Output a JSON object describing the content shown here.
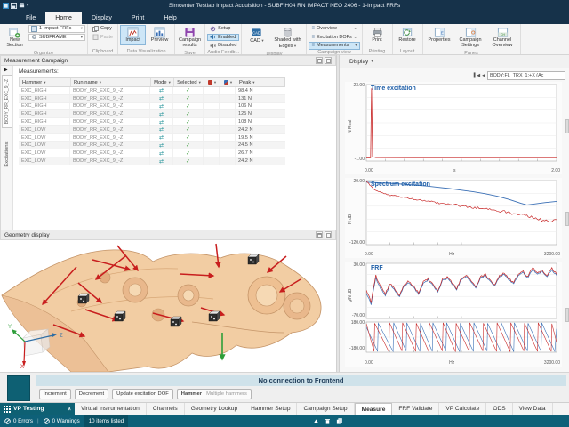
{
  "window": {
    "title": "Simcenter Testlab Impact Acquisition - SUBF H04 RN IMPACT NEO 2406 - 1-Impact FRFs"
  },
  "menu": {
    "tabs": [
      "File",
      "Home",
      "Display",
      "Print",
      "Help"
    ],
    "active_tab": "Home"
  },
  "ribbon": {
    "organize": {
      "label": "Organize",
      "new_section": "New Section",
      "combo1": "1-Impact FRFs",
      "combo2": "SUBFRAME"
    },
    "clipboard": {
      "label": "Clipboard",
      "copy": "Copy",
      "paste": "Paste"
    },
    "dataviz": {
      "label": "Data Visualization",
      "impact": "Impact",
      "preview": "Preview"
    },
    "save": {
      "label": "Save",
      "campaign_results": "Campaign results"
    },
    "audio": {
      "label": "Audio Feedb...",
      "setup": "Setup",
      "enabled": "Enabled",
      "disabled": "Disabled"
    },
    "display": {
      "label": "Display",
      "cad": "CAD",
      "shaded": "Shaded with Edges"
    },
    "campaign_view": {
      "label": "Campaign view",
      "overview": "Overview",
      "excitation_dofs": "Excitation DOFs",
      "measurements": "Measurements"
    },
    "printing": {
      "label": "Printing",
      "print": "Print"
    },
    "layout": {
      "label": "Layout",
      "restore": "Restore"
    },
    "panes": {
      "label": "Panes",
      "properties": "Properties",
      "campaign_settings": "Campaign Settings",
      "channel_overview": "Channel Overview"
    }
  },
  "left": {
    "panel_title": "Measurement Campaign",
    "excitation_tab": "BODY_RR_EXC_9_-Z",
    "excitations_label": "Excitations:",
    "measurements_label": "Measurements:",
    "table": {
      "columns": [
        "Hammer",
        "Run name",
        "Mode",
        "Selected",
        "Peak"
      ],
      "rows": [
        {
          "hammer": "EXC_HIGH",
          "run": "BODY_RR_EXC_9_-Z",
          "peak": "98.4 N"
        },
        {
          "hammer": "EXC_HIGH",
          "run": "BODY_RR_EXC_9_-Z",
          "peak": "131 N"
        },
        {
          "hammer": "EXC_HIGH",
          "run": "BODY_RR_EXC_9_-Z",
          "peak": "106 N"
        },
        {
          "hammer": "EXC_HIGH",
          "run": "BODY_RR_EXC_9_-Z",
          "peak": "125 N"
        },
        {
          "hammer": "EXC_HIGH",
          "run": "BODY_RR_EXC_9_-Z",
          "peak": "108 N"
        },
        {
          "hammer": "EXC_LOW",
          "run": "BODY_RR_EXC_9_-Z",
          "peak": "24.2 N"
        },
        {
          "hammer": "EXC_LOW",
          "run": "BODY_RR_EXC_9_-Z",
          "peak": "19.5 N"
        },
        {
          "hammer": "EXC_LOW",
          "run": "BODY_RR_EXC_9_-Z",
          "peak": "24.5 N"
        },
        {
          "hammer": "EXC_LOW",
          "run": "BODY_RR_EXC_9_-Z",
          "peak": "26.7 N"
        },
        {
          "hammer": "EXC_LOW",
          "run": "BODY_RR_EXC_9_-Z",
          "peak": "24.2 N"
        }
      ]
    },
    "geometry_title": "Geometry display",
    "triad": {
      "x": "X",
      "y": "Y",
      "z": "Z"
    }
  },
  "right": {
    "display_button": "Display",
    "nav_value": "BODY:FL_TRX_1:+X (Ac"
  },
  "chart_data": {
    "time": {
      "type": "line",
      "title": "Time excitation",
      "yunit1": "N",
      "yunit2": "Real",
      "ymax": "23.00",
      "ymin": "-1.00",
      "xmin": "0.00",
      "xmax": "2.00",
      "xunit": "s",
      "xlim": [
        0,
        2
      ],
      "ylim": [
        -1,
        23
      ],
      "series": [
        {
          "name": "hammer-time-trace",
          "color": "#c82828",
          "width": 0.8,
          "jitter": 0,
          "points": [
            [
              0,
              0
            ],
            [
              0.045,
              0
            ],
            [
              0.055,
              21.8
            ],
            [
              0.065,
              0.4
            ],
            [
              0.1,
              0.1
            ],
            [
              0.5,
              0.05
            ],
            [
              1,
              0.05
            ],
            [
              1.5,
              0.05
            ],
            [
              2,
              0.05
            ]
          ]
        }
      ]
    },
    "spectrum": {
      "type": "line",
      "title": "Spectrum excitation",
      "yunit1": "N",
      "yunit2": "dB",
      "ymax": "-20.00",
      "ymin": "-120.00",
      "xmin": "0.00",
      "xmax": "3200.00",
      "xunit": "Hz",
      "xlim": [
        0,
        3200
      ],
      "ylim": [
        -120,
        -20
      ],
      "series": [
        {
          "name": "spectrum-smoothed",
          "color": "#3a6fb5",
          "width": 0.9,
          "jitter": 0,
          "points": [
            [
              0,
              -22.5
            ],
            [
              200,
              -23.5
            ],
            [
              400,
              -24.5
            ],
            [
              600,
              -25.5
            ],
            [
              800,
              -27
            ],
            [
              1000,
              -28.5
            ],
            [
              1200,
              -30.5
            ],
            [
              1400,
              -32.5
            ],
            [
              1600,
              -35
            ],
            [
              1800,
              -37.5
            ],
            [
              2000,
              -40.5
            ],
            [
              2200,
              -44.5
            ],
            [
              2400,
              -49.5
            ],
            [
              2600,
              -55.5
            ],
            [
              2700,
              -58
            ],
            [
              2800,
              -57
            ],
            [
              3000,
              -54.5
            ],
            [
              3200,
              -52.5
            ]
          ]
        },
        {
          "name": "spectrum-raw",
          "color": "#c82828",
          "width": 0.7,
          "jitter": 5,
          "jitter_grow": true,
          "points": [
            [
              0,
              -21
            ],
            [
              60,
              -27
            ],
            [
              120,
              -33
            ],
            [
              200,
              -37
            ],
            [
              300,
              -40
            ],
            [
              400,
              -43
            ],
            [
              500,
              -44
            ],
            [
              600,
              -46
            ],
            [
              700,
              -47
            ],
            [
              800,
              -49
            ],
            [
              900,
              -50
            ],
            [
              1000,
              -52
            ],
            [
              1100,
              -53
            ],
            [
              1200,
              -55
            ],
            [
              1300,
              -56
            ],
            [
              1400,
              -57
            ],
            [
              1500,
              -58
            ],
            [
              1600,
              -60
            ],
            [
              1700,
              -61
            ],
            [
              1800,
              -62
            ],
            [
              1900,
              -63
            ],
            [
              2000,
              -64
            ],
            [
              2100,
              -66
            ],
            [
              2200,
              -67
            ],
            [
              2300,
              -68
            ],
            [
              2400,
              -70
            ],
            [
              2500,
              -72
            ],
            [
              2600,
              -71
            ],
            [
              2700,
              -74
            ],
            [
              2800,
              -78
            ],
            [
              2900,
              -80
            ],
            [
              3000,
              -83
            ],
            [
              3100,
              -85
            ],
            [
              3200,
              -81
            ]
          ]
        }
      ]
    },
    "frf": {
      "type": "line",
      "title": "FRF",
      "yunit1": "g/N",
      "yunit2": "dB",
      "ymax": "30.00",
      "ymin": "-70.00",
      "pmax": "180.00",
      "pmin": "-180.00",
      "xmin": "0.00",
      "xmax": "3200.00",
      "xunit": "Hz",
      "xlim": [
        0,
        3200
      ],
      "ylim": [
        -70,
        30
      ],
      "plim": [
        -180,
        180
      ],
      "amp": [
        {
          "name": "frf-amplitude-blue",
          "color": "#3a6fb5",
          "width": 0.7,
          "jitter": 3,
          "x_step": 80,
          "values": [
            -25,
            -44,
            4,
            -16,
            -28,
            -9,
            -20,
            -30,
            -10,
            -5,
            -14,
            -26,
            -7,
            0,
            -10,
            -22,
            -2,
            3,
            -7,
            -17,
            1,
            6,
            -4,
            -14,
            3,
            8,
            -2,
            -10,
            6,
            10,
            0,
            -7,
            8,
            13,
            3,
            20,
            10,
            16,
            6,
            18,
            8
          ]
        },
        {
          "name": "frf-amplitude-red",
          "color": "#c82828",
          "width": 0.7,
          "jitter": 4,
          "x_step": 80,
          "values": [
            -20,
            -40,
            8,
            -12,
            -25,
            -6,
            -18,
            -28,
            -8,
            -2,
            -12,
            -24,
            -4,
            2,
            -8,
            -20,
            0,
            5,
            -5,
            -15,
            3,
            8,
            -2,
            -12,
            5,
            10,
            0,
            -8,
            8,
            12,
            2,
            -5,
            10,
            15,
            5,
            24,
            12,
            18,
            8,
            22,
            10
          ]
        }
      ],
      "phase": [
        {
          "name": "frf-phase-blue",
          "color": "#3a6fb5",
          "width": 0.6,
          "jitter": 0,
          "points": [
            [
              0,
              120
            ],
            [
              190,
              -170
            ],
            [
              200,
              165
            ],
            [
              450,
              -170
            ],
            [
              460,
              170
            ],
            [
              670,
              -165
            ],
            [
              680,
              170
            ],
            [
              900,
              -170
            ],
            [
              910,
              165
            ],
            [
              1110,
              -170
            ],
            [
              1120,
              170
            ],
            [
              1340,
              -165
            ],
            [
              1350,
              170
            ],
            [
              1570,
              -175
            ],
            [
              1580,
              165
            ],
            [
              1800,
              -170
            ],
            [
              1810,
              170
            ],
            [
              2030,
              -165
            ],
            [
              2040,
              165
            ],
            [
              2260,
              -170
            ],
            [
              2270,
              170
            ],
            [
              2480,
              -175
            ],
            [
              2490,
              170
            ],
            [
              2710,
              -165
            ],
            [
              2720,
              165
            ],
            [
              2940,
              -170
            ],
            [
              2950,
              170
            ],
            [
              3170,
              -170
            ],
            [
              3200,
              100
            ]
          ]
        },
        {
          "name": "frf-phase-red",
          "color": "#c82828",
          "width": 0.6,
          "jitter": 0,
          "points": [
            [
              0,
              160
            ],
            [
              130,
              -170
            ],
            [
              140,
              165
            ],
            [
              380,
              -175
            ],
            [
              390,
              170
            ],
            [
              600,
              -165
            ],
            [
              610,
              170
            ],
            [
              830,
              -170
            ],
            [
              840,
              165
            ],
            [
              1050,
              -170
            ],
            [
              1060,
              170
            ],
            [
              1280,
              -165
            ],
            [
              1290,
              170
            ],
            [
              1500,
              -175
            ],
            [
              1510,
              165
            ],
            [
              1730,
              -170
            ],
            [
              1740,
              170
            ],
            [
              1960,
              -165
            ],
            [
              1970,
              165
            ],
            [
              2190,
              -170
            ],
            [
              2200,
              170
            ],
            [
              2420,
              -175
            ],
            [
              2430,
              170
            ],
            [
              2650,
              -165
            ],
            [
              2660,
              165
            ],
            [
              2880,
              -170
            ],
            [
              2890,
              170
            ],
            [
              3110,
              -170
            ],
            [
              3120,
              160
            ],
            [
              3200,
              -60
            ]
          ]
        }
      ]
    }
  },
  "geometry_markers": {
    "arrows": [
      [
        132,
        6,
        155,
        34
      ],
      [
        243,
        4,
        246,
        30
      ],
      [
        104,
        22,
        146,
        33
      ],
      [
        141,
        18,
        108,
        44
      ],
      [
        202,
        38,
        240,
        40
      ],
      [
        322,
        18,
        301,
        36
      ],
      [
        338,
        44,
        315,
        58
      ],
      [
        86,
        30,
        48,
        72
      ],
      [
        88,
        48,
        114,
        70
      ],
      [
        96,
        78,
        132,
        90
      ],
      [
        172,
        82,
        206,
        91
      ],
      [
        226,
        76,
        252,
        84
      ],
      [
        60,
        95,
        95,
        108
      ]
    ],
    "cubes": [
      [
        279,
        16
      ],
      [
        129,
        80
      ],
      [
        192,
        86
      ],
      [
        235,
        80
      ],
      [
        88,
        60
      ]
    ],
    "green_arrow": [
      250,
      104,
      250,
      134
    ]
  },
  "footer": {
    "banner": "No connection to Frontend",
    "increment": "Increment",
    "decrement": "Decrement",
    "update": "Update excitation DOF",
    "hammer_label": "Hammer :",
    "hammer_value": "Multiple hammers"
  },
  "bottom_tabs": {
    "first": "VP Testing",
    "tabs": [
      "Virtual Instrumentation",
      "Channels",
      "Geometry Lookup",
      "Hammer Setup",
      "Campaign Setup",
      "Measure",
      "FRF Validate",
      "VP Calculate",
      "ODS",
      "View Data"
    ],
    "active": "Measure"
  },
  "statusbar": {
    "errors": "0 Errors",
    "warnings": "0 Warnings",
    "items": "10 items listed"
  }
}
